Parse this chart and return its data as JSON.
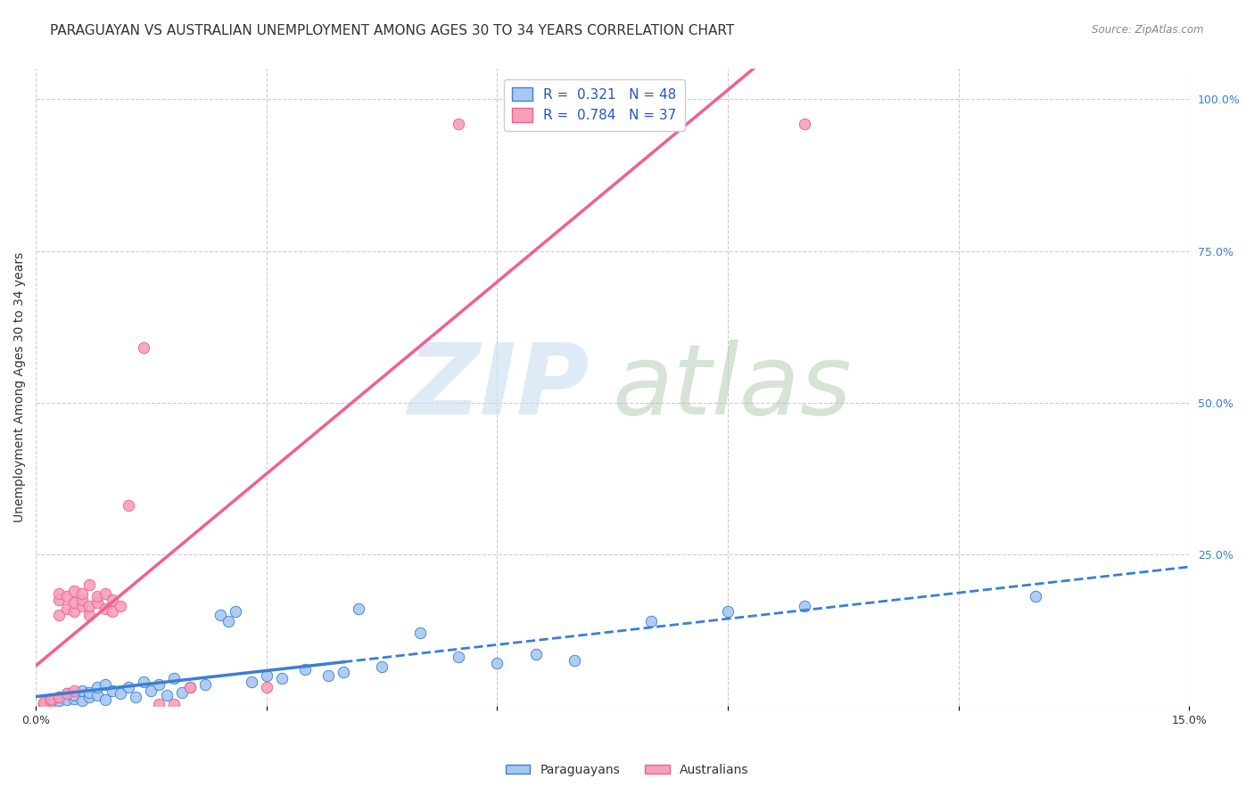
{
  "title": "PARAGUAYAN VS AUSTRALIAN UNEMPLOYMENT AMONG AGES 30 TO 34 YEARS CORRELATION CHART",
  "source": "Source: ZipAtlas.com",
  "ylabel": "Unemployment Among Ages 30 to 34 years",
  "xlim": [
    0.0,
    0.15
  ],
  "ylim": [
    0.0,
    1.05
  ],
  "xticks": [
    0.0,
    0.03,
    0.06,
    0.09,
    0.12,
    0.15
  ],
  "ytick_right": [
    0.0,
    0.25,
    0.5,
    0.75,
    1.0
  ],
  "paraguayan_color": "#a8c8f0",
  "australian_color": "#f5a0b8",
  "paraguayan_line_color": "#3a7fd5",
  "australian_line_color": "#f06090",
  "R_paraguayan": 0.321,
  "N_paraguayan": 48,
  "R_australian": 0.784,
  "N_australian": 37,
  "legend_R_color": "#2255cc",
  "grid_color": "#cccccc",
  "background_color": "#ffffff",
  "title_fontsize": 11,
  "axis_label_fontsize": 10,
  "tick_fontsize": 9,
  "legend_fontsize": 11,
  "paraguayan_scatter": [
    [
      0.001,
      0.002
    ],
    [
      0.002,
      0.005
    ],
    [
      0.003,
      0.008
    ],
    [
      0.003,
      0.015
    ],
    [
      0.004,
      0.01
    ],
    [
      0.004,
      0.02
    ],
    [
      0.005,
      0.012
    ],
    [
      0.005,
      0.018
    ],
    [
      0.006,
      0.008
    ],
    [
      0.006,
      0.025
    ],
    [
      0.007,
      0.015
    ],
    [
      0.007,
      0.022
    ],
    [
      0.008,
      0.018
    ],
    [
      0.008,
      0.03
    ],
    [
      0.009,
      0.01
    ],
    [
      0.009,
      0.035
    ],
    [
      0.01,
      0.025
    ],
    [
      0.011,
      0.02
    ],
    [
      0.012,
      0.03
    ],
    [
      0.013,
      0.015
    ],
    [
      0.014,
      0.04
    ],
    [
      0.015,
      0.025
    ],
    [
      0.016,
      0.035
    ],
    [
      0.017,
      0.018
    ],
    [
      0.018,
      0.045
    ],
    [
      0.019,
      0.022
    ],
    [
      0.02,
      0.03
    ],
    [
      0.022,
      0.035
    ],
    [
      0.024,
      0.15
    ],
    [
      0.025,
      0.14
    ],
    [
      0.026,
      0.155
    ],
    [
      0.028,
      0.04
    ],
    [
      0.03,
      0.05
    ],
    [
      0.032,
      0.045
    ],
    [
      0.035,
      0.06
    ],
    [
      0.038,
      0.05
    ],
    [
      0.04,
      0.055
    ],
    [
      0.042,
      0.16
    ],
    [
      0.045,
      0.065
    ],
    [
      0.05,
      0.12
    ],
    [
      0.055,
      0.08
    ],
    [
      0.06,
      0.07
    ],
    [
      0.065,
      0.085
    ],
    [
      0.07,
      0.075
    ],
    [
      0.08,
      0.14
    ],
    [
      0.09,
      0.155
    ],
    [
      0.1,
      0.165
    ],
    [
      0.13,
      0.18
    ]
  ],
  "australian_scatter": [
    [
      0.001,
      0.002
    ],
    [
      0.001,
      0.005
    ],
    [
      0.002,
      0.008
    ],
    [
      0.002,
      0.012
    ],
    [
      0.003,
      0.015
    ],
    [
      0.003,
      0.15
    ],
    [
      0.003,
      0.175
    ],
    [
      0.003,
      0.185
    ],
    [
      0.004,
      0.02
    ],
    [
      0.004,
      0.16
    ],
    [
      0.004,
      0.18
    ],
    [
      0.005,
      0.025
    ],
    [
      0.005,
      0.155
    ],
    [
      0.005,
      0.17
    ],
    [
      0.005,
      0.19
    ],
    [
      0.006,
      0.165
    ],
    [
      0.006,
      0.175
    ],
    [
      0.006,
      0.185
    ],
    [
      0.007,
      0.15
    ],
    [
      0.007,
      0.165
    ],
    [
      0.007,
      0.2
    ],
    [
      0.008,
      0.17
    ],
    [
      0.008,
      0.18
    ],
    [
      0.009,
      0.16
    ],
    [
      0.009,
      0.185
    ],
    [
      0.01,
      0.155
    ],
    [
      0.01,
      0.175
    ],
    [
      0.011,
      0.165
    ],
    [
      0.012,
      0.33
    ],
    [
      0.014,
      0.59
    ],
    [
      0.016,
      0.002
    ],
    [
      0.018,
      0.002
    ],
    [
      0.02,
      0.03
    ],
    [
      0.03,
      0.03
    ],
    [
      0.055,
      0.96
    ],
    [
      0.065,
      0.96
    ],
    [
      0.1,
      0.96
    ]
  ],
  "par_line_slope": 1.2,
  "par_line_intercept": 0.005,
  "aus_line_slope": 16.0,
  "aus_line_intercept": -0.03
}
